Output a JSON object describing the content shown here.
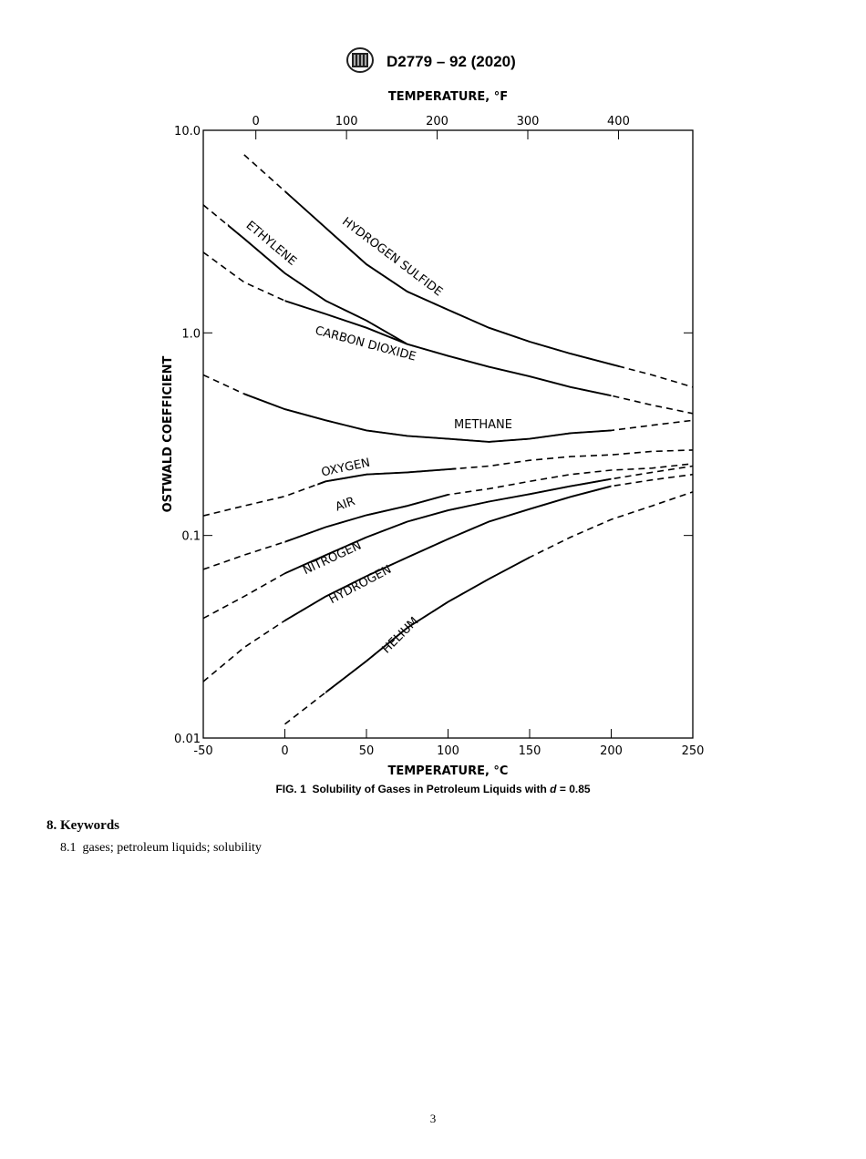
{
  "header": {
    "title": "D2779 – 92 (2020)"
  },
  "chart_data": {
    "type": "line",
    "xlabel": "TEMPERATURE, °C",
    "x2label": "TEMPERATURE, °F",
    "ylabel": "OSTWALD COEFFICIENT",
    "x": [
      -50,
      -25,
      0,
      25,
      50,
      75,
      100,
      125,
      150,
      175,
      200,
      225,
      250
    ],
    "xlim": [
      -50,
      250
    ],
    "xticks": [
      -50,
      0,
      50,
      100,
      150,
      200,
      250
    ],
    "x2lim": [
      -58,
      482
    ],
    "x2ticks": [
      0,
      100,
      200,
      300,
      400
    ],
    "ylim": [
      0.01,
      10
    ],
    "yticks": [
      0.01,
      0.1,
      {
        "value": 1,
        "label": "1.0"
      },
      {
        "value": 10,
        "label": "10.0"
      }
    ],
    "log_y": true,
    "color": "#000000",
    "series": [
      {
        "name": "HYDROGEN SULFIDE",
        "solid_range": [
          0,
          205
        ],
        "values": [
          null,
          7.57,
          5.0,
          3.3,
          2.18,
          1.6,
          1.3,
          1.06,
          0.905,
          0.79,
          0.7,
          0.62,
          0.54
        ]
      },
      {
        "name": "ETHYLENE",
        "solid_range": [
          -35,
          75
        ],
        "values": [
          4.28,
          2.92,
          1.97,
          1.44,
          1.15,
          0.88,
          null,
          null,
          null,
          null,
          null,
          null,
          null
        ]
      },
      {
        "name": "CARBON DIOXIDE",
        "solid_range": [
          0,
          200
        ],
        "values": [
          2.5,
          1.78,
          1.44,
          1.24,
          1.06,
          0.88,
          0.77,
          0.68,
          0.61,
          0.54,
          0.49,
          0.44,
          0.4
        ]
      },
      {
        "name": "METHANE",
        "solid_range": [
          -25,
          200
        ],
        "values": [
          0.62,
          0.5,
          0.42,
          0.37,
          0.33,
          0.31,
          0.3,
          0.29,
          0.3,
          0.32,
          0.33,
          0.35,
          0.37
        ]
      },
      {
        "name": "OXYGEN",
        "solid_range": [
          20,
          105
        ],
        "values": [
          0.125,
          0.14,
          0.156,
          0.185,
          0.2,
          0.205,
          0.212,
          0.22,
          0.235,
          0.245,
          0.25,
          0.26,
          0.264
        ]
      },
      {
        "name": "AIR",
        "solid_range": [
          0,
          100
        ],
        "values": [
          0.068,
          0.08,
          0.093,
          0.11,
          0.126,
          0.14,
          0.159,
          0.17,
          0.185,
          0.2,
          0.21,
          0.215,
          0.226
        ]
      },
      {
        "name": "NITROGEN",
        "solid_range": [
          0,
          200
        ],
        "values": [
          0.039,
          0.05,
          0.065,
          0.08,
          0.098,
          0.117,
          0.133,
          0.147,
          0.16,
          0.175,
          0.19,
          0.205,
          0.22
        ]
      },
      {
        "name": "HYDROGEN",
        "solid_range": [
          0,
          200
        ],
        "values": [
          0.019,
          0.028,
          0.038,
          0.05,
          0.063,
          0.078,
          0.096,
          0.117,
          0.135,
          0.155,
          0.175,
          0.188,
          0.2
        ]
      },
      {
        "name": "HELIUM",
        "solid_range": [
          25,
          150
        ],
        "values": [
          null,
          null,
          0.0117,
          0.0168,
          0.024,
          0.035,
          0.047,
          0.061,
          0.078,
          0.098,
          0.12,
          0.14,
          0.164
        ]
      }
    ]
  },
  "caption": {
    "label": "FIG. 1",
    "text": "Solubility of Gases in Petroleum Liquids with",
    "var": "d",
    "rest": "= 0.85"
  },
  "section": {
    "heading": "8. Keywords",
    "paragraph": "8.1  gases; petroleum liquids; solubility"
  },
  "footer": {
    "page": "3"
  }
}
